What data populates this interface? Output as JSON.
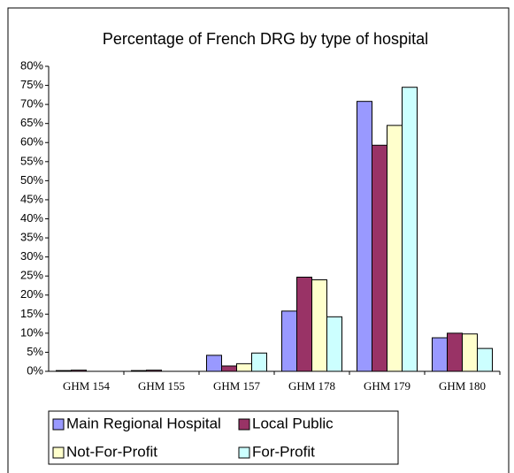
{
  "chart_data": {
    "type": "bar",
    "title": "Percentage of French DRG by type of hospital",
    "categories": [
      "GHM 154",
      "GHM 155",
      "GHM 157",
      "GHM 178",
      "GHM 179",
      "GHM 180"
    ],
    "series": [
      {
        "name": "Main Regional Hospital",
        "color": "#9999ff",
        "values": [
          0.2,
          0.2,
          4.2,
          15.8,
          70.8,
          8.8
        ]
      },
      {
        "name": "Local Public",
        "color": "#993366",
        "values": [
          0.3,
          0.3,
          1.4,
          24.7,
          59.3,
          10.0
        ]
      },
      {
        "name": "Not-For-Profit",
        "color": "#ffffcc",
        "values": [
          0,
          0,
          2.0,
          24.0,
          64.5,
          9.8
        ]
      },
      {
        "name": "For-Profit",
        "color": "#ccffff",
        "values": [
          0,
          0,
          4.8,
          14.3,
          74.5,
          6.0
        ]
      }
    ],
    "ylim": [
      0,
      80
    ],
    "yticks": [
      {
        "value": 0,
        "label": "0%"
      },
      {
        "value": 5,
        "label": "5%"
      },
      {
        "value": 10,
        "label": "10%"
      },
      {
        "value": 15,
        "label": "15%"
      },
      {
        "value": 20,
        "label": "20%"
      },
      {
        "value": 25,
        "label": "25%"
      },
      {
        "value": 30,
        "label": "30%"
      },
      {
        "value": 35,
        "label": "35%"
      },
      {
        "value": 40,
        "label": "40%"
      },
      {
        "value": 45,
        "label": "45%"
      },
      {
        "value": 50,
        "label": "50%"
      },
      {
        "value": 55,
        "label": "55%"
      },
      {
        "value": 60,
        "label": "60%"
      },
      {
        "value": 65,
        "label": "65%"
      },
      {
        "value": 70,
        "label": "70%"
      },
      {
        "value": 75,
        "label": "75%"
      },
      {
        "value": 80,
        "label": "80%"
      }
    ],
    "grid": false,
    "legend": "bottom"
  }
}
